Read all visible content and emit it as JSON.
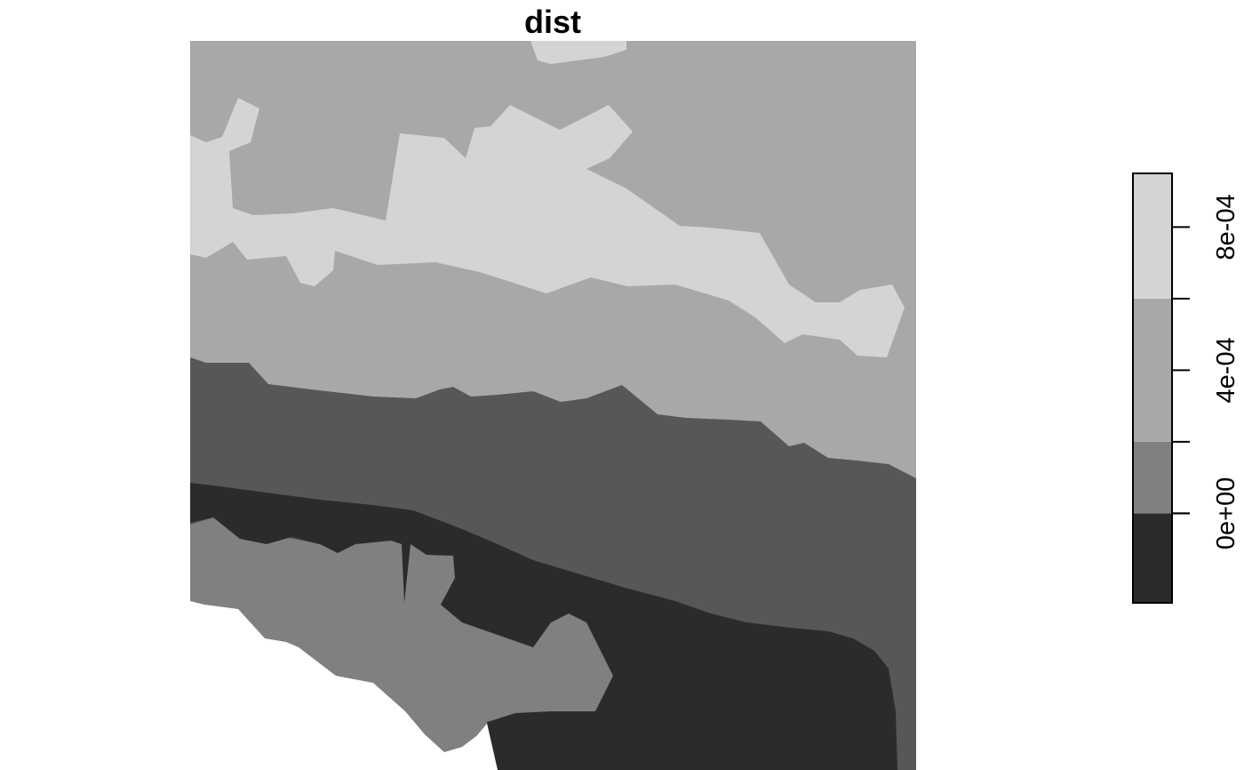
{
  "chart_data": {
    "type": "heatmap",
    "title": "dist",
    "xlabel": "",
    "ylabel": "",
    "legend": {
      "placement": "right",
      "ticks": [
        "8e-04",
        "4e-04",
        "0e+00"
      ],
      "tick_values": [
        0.0008,
        0.0004,
        0.0
      ],
      "range": [
        -0.00025,
        0.00095
      ],
      "breaks": [
        -0.00025,
        0.0,
        0.0002,
        0.0006,
        0.00095
      ],
      "colors": [
        "#2b2b2b",
        "#808080",
        "#a8a8a8",
        "#d4d4d4"
      ]
    },
    "classes": [
      {
        "range": [
          -0.00025,
          0.0
        ],
        "color": "#2b2b2b"
      },
      {
        "range": [
          0.0,
          0.0002
        ],
        "color": "#808080"
      },
      {
        "range": [
          0.0002,
          0.0006
        ],
        "color": "#a8a8a8"
      },
      {
        "range": [
          0.0006,
          0.00095
        ],
        "color": "#d4d4d4"
      }
    ],
    "map_colors": {
      "very_light": "#d4d4d4",
      "light": "#a8a8a8",
      "medium": "#808080",
      "dark": "#575757",
      "very_dark": "#2b2b2b",
      "no_data": "#ffffff"
    }
  }
}
